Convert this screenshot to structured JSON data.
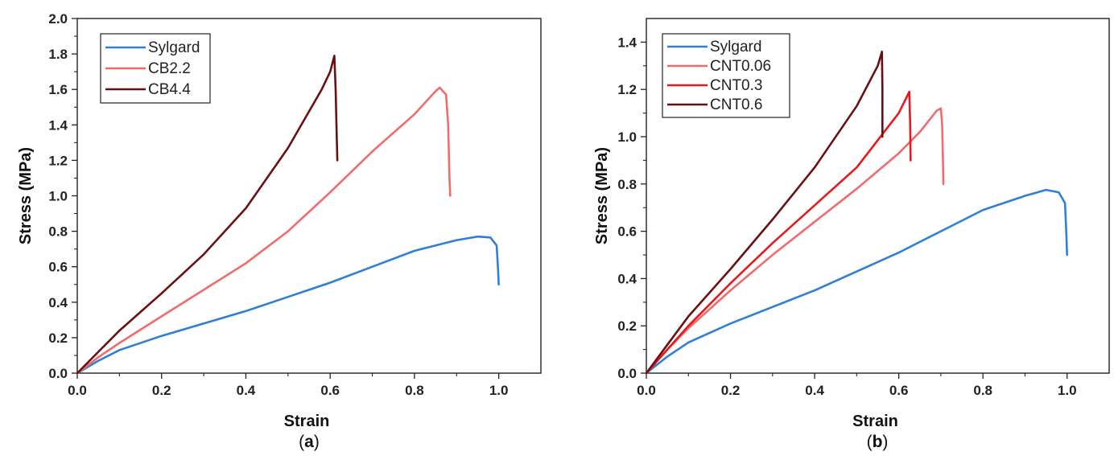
{
  "chart_data": [
    {
      "type": "line",
      "panel_label": "a",
      "xlabel": "Strain",
      "ylabel": "Stress (MPa)",
      "xlim": [
        0,
        1.1
      ],
      "ylim": [
        0,
        2.0
      ],
      "xticks": [
        "0.0",
        "0.2",
        "0.4",
        "0.6",
        "0.8",
        "1.0"
      ],
      "yticks": [
        "0.0",
        "0.2",
        "0.4",
        "0.6",
        "0.8",
        "1.0",
        "1.2",
        "1.4",
        "1.6",
        "1.8",
        "2.0"
      ],
      "grid": false,
      "legend_position": "top-left",
      "series": [
        {
          "name": "Sylgard",
          "color": "#2f7fd6",
          "points": [
            [
              0,
              0
            ],
            [
              0.05,
              0.07
            ],
            [
              0.1,
              0.13
            ],
            [
              0.2,
              0.21
            ],
            [
              0.3,
              0.28
            ],
            [
              0.4,
              0.35
            ],
            [
              0.5,
              0.43
            ],
            [
              0.6,
              0.51
            ],
            [
              0.7,
              0.6
            ],
            [
              0.8,
              0.69
            ],
            [
              0.9,
              0.75
            ],
            [
              0.95,
              0.77
            ],
            [
              0.98,
              0.765
            ],
            [
              0.995,
              0.72
            ],
            [
              0.998,
              0.6
            ],
            [
              1.0,
              0.5
            ]
          ]
        },
        {
          "name": "CB2.2",
          "color": "#f26b6b",
          "points": [
            [
              0,
              0
            ],
            [
              0.05,
              0.09
            ],
            [
              0.1,
              0.17
            ],
            [
              0.2,
              0.32
            ],
            [
              0.3,
              0.47
            ],
            [
              0.4,
              0.62
            ],
            [
              0.5,
              0.8
            ],
            [
              0.6,
              1.02
            ],
            [
              0.7,
              1.25
            ],
            [
              0.8,
              1.46
            ],
            [
              0.85,
              1.59
            ],
            [
              0.86,
              1.61
            ],
            [
              0.875,
              1.57
            ],
            [
              0.88,
              1.4
            ],
            [
              0.883,
              1.1
            ],
            [
              0.885,
              1.0
            ]
          ]
        },
        {
          "name": "CB4.4",
          "color": "#6b0f12",
          "points": [
            [
              0,
              0
            ],
            [
              0.05,
              0.12
            ],
            [
              0.1,
              0.24
            ],
            [
              0.2,
              0.45
            ],
            [
              0.3,
              0.67
            ],
            [
              0.4,
              0.93
            ],
            [
              0.5,
              1.27
            ],
            [
              0.58,
              1.6
            ],
            [
              0.6,
              1.7
            ],
            [
              0.61,
              1.79
            ],
            [
              0.613,
              1.6
            ],
            [
              0.615,
              1.4
            ],
            [
              0.617,
              1.2
            ]
          ]
        }
      ]
    },
    {
      "type": "line",
      "panel_label": "b",
      "xlabel": "Strain",
      "ylabel": "Stress (MPa)",
      "xlim": [
        0,
        1.1
      ],
      "ylim": [
        0,
        1.5
      ],
      "xticks": [
        "0.0",
        "0.2",
        "0.4",
        "0.6",
        "0.8",
        "1.0"
      ],
      "yticks": [
        "0.0",
        "0.2",
        "0.4",
        "0.6",
        "0.8",
        "1.0",
        "1.2",
        "1.4"
      ],
      "grid": false,
      "legend_position": "top-left",
      "series": [
        {
          "name": "Sylgard",
          "color": "#2f7fd6",
          "points": [
            [
              0,
              0
            ],
            [
              0.05,
              0.07
            ],
            [
              0.1,
              0.13
            ],
            [
              0.2,
              0.21
            ],
            [
              0.3,
              0.28
            ],
            [
              0.4,
              0.35
            ],
            [
              0.5,
              0.43
            ],
            [
              0.6,
              0.51
            ],
            [
              0.7,
              0.6
            ],
            [
              0.8,
              0.69
            ],
            [
              0.9,
              0.75
            ],
            [
              0.95,
              0.775
            ],
            [
              0.98,
              0.765
            ],
            [
              0.995,
              0.72
            ],
            [
              0.998,
              0.6
            ],
            [
              1.0,
              0.5
            ]
          ]
        },
        {
          "name": "CNT0.06",
          "color": "#f26b6b",
          "points": [
            [
              0,
              0
            ],
            [
              0.05,
              0.1
            ],
            [
              0.1,
              0.19
            ],
            [
              0.2,
              0.35
            ],
            [
              0.3,
              0.5
            ],
            [
              0.4,
              0.64
            ],
            [
              0.5,
              0.78
            ],
            [
              0.6,
              0.93
            ],
            [
              0.65,
              1.02
            ],
            [
              0.69,
              1.11
            ],
            [
              0.7,
              1.12
            ],
            [
              0.703,
              1.05
            ],
            [
              0.705,
              0.9
            ],
            [
              0.706,
              0.8
            ]
          ]
        },
        {
          "name": "CNT0.3",
          "color": "#e8191c",
          "points": [
            [
              0,
              0
            ],
            [
              0.05,
              0.1
            ],
            [
              0.1,
              0.2
            ],
            [
              0.2,
              0.38
            ],
            [
              0.3,
              0.55
            ],
            [
              0.4,
              0.71
            ],
            [
              0.5,
              0.87
            ],
            [
              0.6,
              1.1
            ],
            [
              0.625,
              1.19
            ],
            [
              0.627,
              1.05
            ],
            [
              0.628,
              0.9
            ]
          ]
        },
        {
          "name": "CNT0.6",
          "color": "#6b0f12",
          "points": [
            [
              0,
              0
            ],
            [
              0.05,
              0.12
            ],
            [
              0.1,
              0.24
            ],
            [
              0.2,
              0.44
            ],
            [
              0.3,
              0.65
            ],
            [
              0.4,
              0.87
            ],
            [
              0.5,
              1.13
            ],
            [
              0.55,
              1.3
            ],
            [
              0.56,
              1.36
            ],
            [
              0.561,
              1.2
            ],
            [
              0.561,
              1.0
            ]
          ]
        }
      ]
    }
  ]
}
